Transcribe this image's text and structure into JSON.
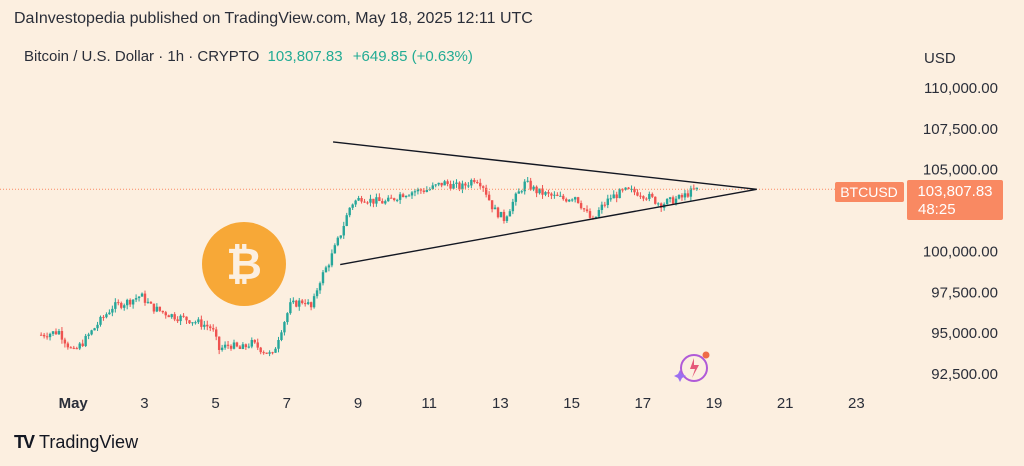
{
  "header": {
    "publisher": "DaInvestopedia published on TradingView.com, May 18, 2025 12:11 UTC",
    "symbol_desc": "Bitcoin / U.S. Dollar · 1h · CRYPTO",
    "last_price": "103,807.83",
    "change": "+649.85 (+0.63%)",
    "currency": "USD"
  },
  "price_tag": {
    "symbol": "BTCUSD",
    "price": "103,807.83",
    "countdown": "48:25"
  },
  "branding": {
    "logo_text": "TradingView"
  },
  "colors": {
    "background": "#fcefe0",
    "up": "#26a69a",
    "down": "#ef5350",
    "tag": "#f98962",
    "bitcoin": "#f7a837",
    "line": "#131722"
  },
  "chart_data": {
    "type": "line",
    "subtype": "candlestick",
    "symbol": "BTCUSD",
    "interval": "1h",
    "ylim": [
      91500,
      111500
    ],
    "y_ticks": [
      110000,
      107500,
      105000,
      100000,
      97500,
      95000,
      92500
    ],
    "y_tick_labels": [
      "110,000.00",
      "107,500.00",
      "105,000.00",
      "100,000.00",
      "97,500.00",
      "95,000.00",
      "92,500.00"
    ],
    "x_range_days": [
      0,
      23.8
    ],
    "x_ticks": [
      1,
      3,
      5,
      7,
      9,
      11,
      13,
      15,
      17,
      19,
      21,
      23
    ],
    "x_tick_labels": [
      "May",
      "3",
      "5",
      "7",
      "9",
      "11",
      "13",
      "15",
      "17",
      "19",
      "21",
      "23"
    ],
    "last_price": 103807.83,
    "grid": false,
    "close_path": [
      [
        0.1,
        94900
      ],
      [
        0.6,
        95100
      ],
      [
        1.0,
        93800
      ],
      [
        1.3,
        94500
      ],
      [
        1.7,
        95600
      ],
      [
        2.1,
        96600
      ],
      [
        2.5,
        96900
      ],
      [
        2.9,
        97300
      ],
      [
        3.2,
        96600
      ],
      [
        3.5,
        96300
      ],
      [
        3.9,
        96000
      ],
      [
        4.3,
        95800
      ],
      [
        4.7,
        95500
      ],
      [
        4.9,
        95300
      ],
      [
        5.1,
        94000
      ],
      [
        5.4,
        94300
      ],
      [
        5.7,
        94000
      ],
      [
        6.0,
        94400
      ],
      [
        6.3,
        94000
      ],
      [
        6.6,
        93600
      ],
      [
        6.8,
        95000
      ],
      [
        7.1,
        96700
      ],
      [
        7.5,
        97000
      ],
      [
        7.7,
        96500
      ],
      [
        7.9,
        98100
      ],
      [
        8.2,
        99400
      ],
      [
        8.5,
        101000
      ],
      [
        8.8,
        102900
      ],
      [
        9.1,
        103300
      ],
      [
        9.4,
        103100
      ],
      [
        9.8,
        103000
      ],
      [
        10.2,
        103500
      ],
      [
        10.6,
        103700
      ],
      [
        11.0,
        103800
      ],
      [
        11.4,
        104200
      ],
      [
        11.9,
        103900
      ],
      [
        12.3,
        104500
      ],
      [
        12.5,
        104100
      ],
      [
        12.8,
        102600
      ],
      [
        13.1,
        102000
      ],
      [
        13.4,
        103200
      ],
      [
        13.7,
        104200
      ],
      [
        14.0,
        103700
      ],
      [
        14.4,
        103400
      ],
      [
        14.8,
        103200
      ],
      [
        15.1,
        103400
      ],
      [
        15.4,
        102400
      ],
      [
        15.6,
        101800
      ],
      [
        15.8,
        102600
      ],
      [
        16.1,
        103300
      ],
      [
        16.5,
        103700
      ],
      [
        16.9,
        103600
      ],
      [
        17.2,
        103300
      ],
      [
        17.5,
        102900
      ],
      [
        17.8,
        103100
      ],
      [
        18.1,
        103300
      ],
      [
        18.3,
        103600
      ],
      [
        18.55,
        103800
      ]
    ],
    "pattern": {
      "name": "symmetrical triangle",
      "upper_line": [
        [
          8.3,
          106700
        ],
        [
          20.2,
          103800
        ]
      ],
      "lower_line": [
        [
          8.5,
          99200
        ],
        [
          20.2,
          103800
        ]
      ]
    }
  }
}
